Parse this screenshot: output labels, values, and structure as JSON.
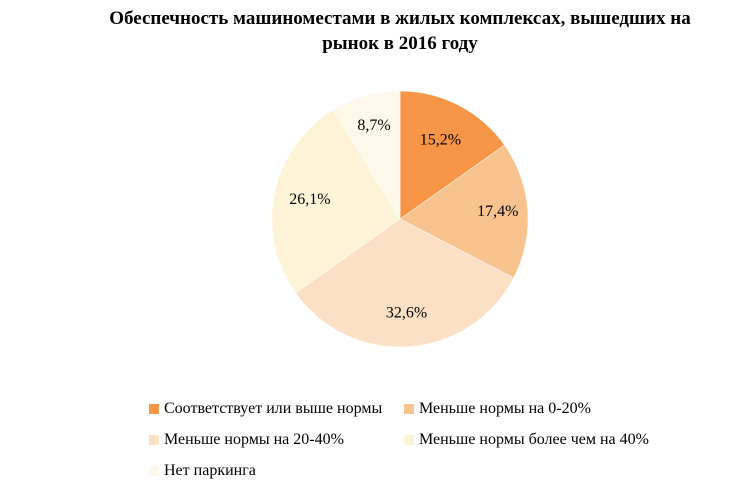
{
  "chart_data": {
    "type": "pie",
    "title_lines": [
      "Обеспечность машиноместами в жилых комплексах, вышедших на",
      "рынок в 2016 году"
    ],
    "categories": [
      "Соответствует или выше нормы",
      "Меньше нормы на 0-20%",
      "Меньше нормы на 20-40%",
      "Меньше нормы более чем на 40%",
      "Нет паркинга"
    ],
    "values": [
      15.2,
      17.4,
      32.6,
      26.1,
      8.7
    ],
    "value_labels": [
      "15,2%",
      "17,4%",
      "32,6%",
      "26,1%",
      "8,7%"
    ],
    "colors": [
      "#F79646",
      "#F8C38F",
      "#FBE0C5",
      "#FDF3D7",
      "#FEF8EA"
    ],
    "legend_position": "bottom"
  }
}
